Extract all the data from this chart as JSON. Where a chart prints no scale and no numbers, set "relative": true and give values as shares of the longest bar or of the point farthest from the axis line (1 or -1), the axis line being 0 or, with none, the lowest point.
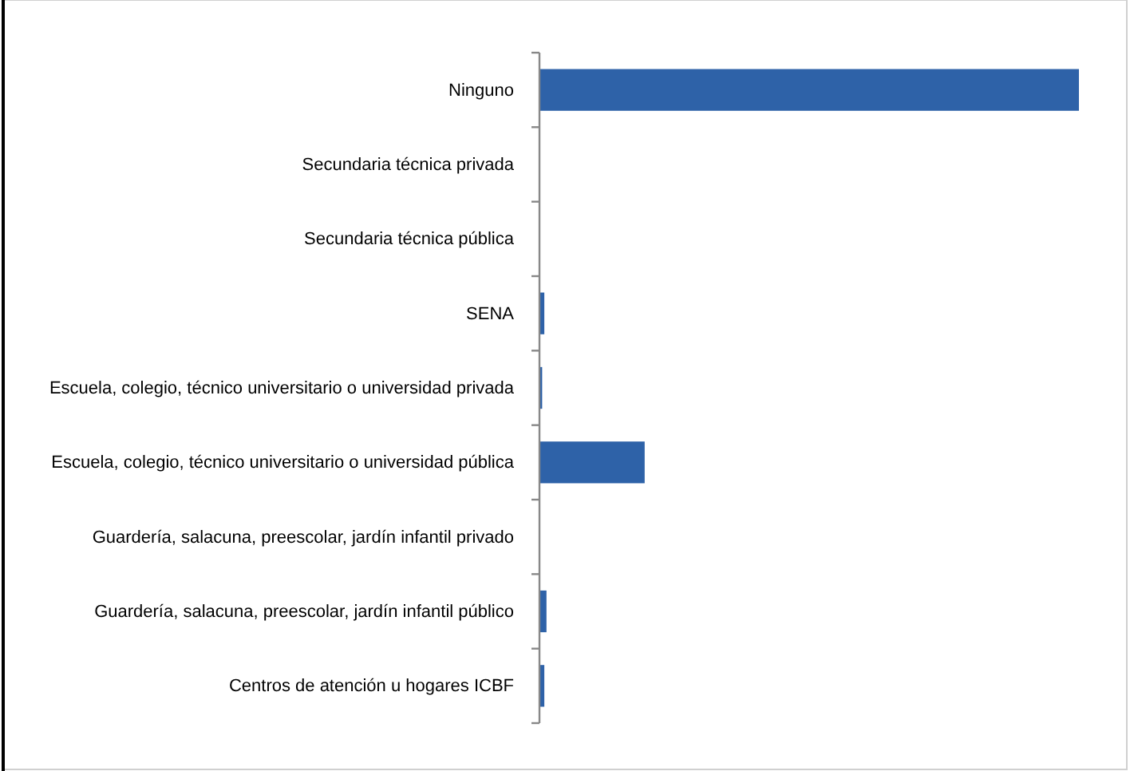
{
  "chart_data": {
    "type": "bar",
    "orientation": "horizontal",
    "relative": true,
    "categories": [
      "Ninguno",
      "Secundaria técnica privada",
      "Secundaria técnica pública",
      "SENA",
      "Escuela, colegio, técnico universitario o universidad privada",
      "Escuela, colegio, técnico universitario o universidad pública",
      "Guardería, salacuna, preescolar, jardín infantil privado",
      "Guardería, salacuna, preescolar, jardín infantil público",
      "Centros de atención u hogares ICBF"
    ],
    "values": [
      1,
      0,
      0,
      0.009,
      0.005,
      0.195,
      0,
      0.013,
      0.009
    ],
    "color": "#2e62a8"
  }
}
